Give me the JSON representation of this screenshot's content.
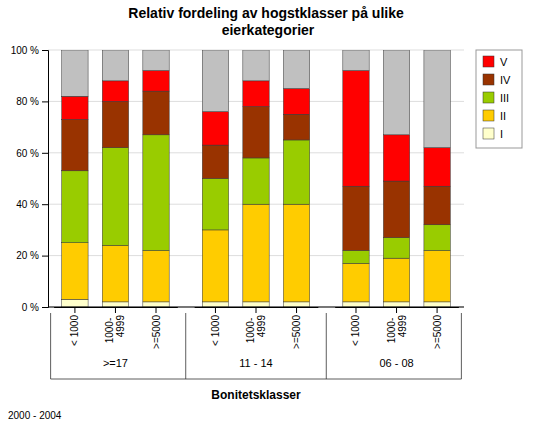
{
  "chart_data": {
    "type": "bar",
    "stacked": true,
    "title": "Relativ fordeling av hogstklasser på ulike\neierkategorier",
    "xlabel": "Bonitetsklasser",
    "groups": [
      ">=17",
      "11 - 14",
      "06 - 08"
    ],
    "categories": [
      "< 1000",
      "1000-\n4999",
      ">=5000",
      "< 1000",
      "1000-\n4999",
      ">=5000",
      "< 1000",
      "1000-\n4999",
      ">=5000"
    ],
    "series": [
      {
        "name": "I",
        "color": "#FFFFCC",
        "values": [
          3,
          2,
          2,
          2,
          2,
          2,
          2,
          2,
          2
        ]
      },
      {
        "name": "II",
        "color": "#FFCC00",
        "values": [
          22,
          22,
          20,
          28,
          38,
          38,
          15,
          17,
          20
        ]
      },
      {
        "name": "III",
        "color": "#99CC00",
        "values": [
          28,
          38,
          45,
          20,
          18,
          25,
          5,
          8,
          10
        ]
      },
      {
        "name": "IV",
        "color": "#993300",
        "values": [
          20,
          18,
          17,
          13,
          20,
          10,
          25,
          22,
          15
        ]
      },
      {
        "name": "V",
        "color": "#FF0000",
        "values": [
          9,
          8,
          8,
          13,
          10,
          10,
          45,
          18,
          15
        ]
      },
      {
        "color": "#C0C0C0",
        "values": [
          18,
          12,
          8,
          24,
          12,
          15,
          8,
          33,
          38
        ]
      }
    ],
    "ylim": [
      0,
      100
    ],
    "yticks": [
      {
        "value": 0,
        "label": "0 %"
      },
      {
        "value": 20,
        "label": "20 %"
      },
      {
        "value": 40,
        "label": "40 %"
      },
      {
        "value": 60,
        "label": "60 %"
      },
      {
        "value": 80,
        "label": "80 %"
      },
      {
        "value": 100,
        "label": "100 %"
      }
    ],
    "grid": true,
    "legend": "right",
    "annotations": [
      "2000 - 2004"
    ]
  }
}
